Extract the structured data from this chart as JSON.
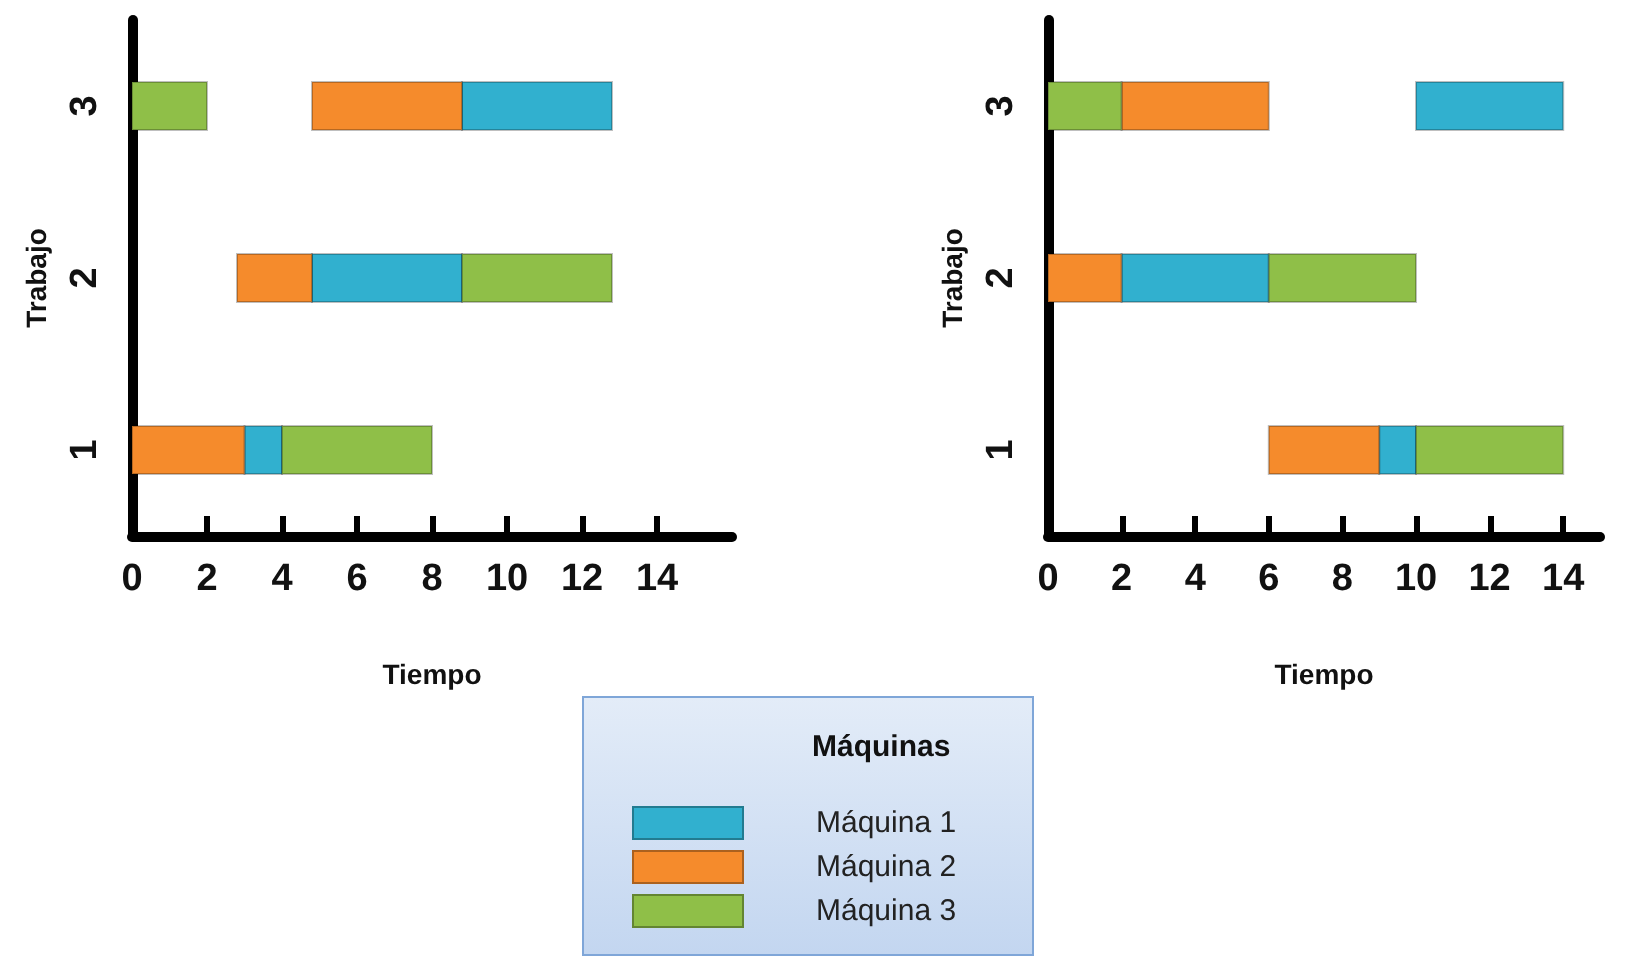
{
  "chart_data": [
    {
      "type": "bar",
      "orientation": "horizontal",
      "xlabel": "Tiempo",
      "ylabel": "Trabajo",
      "categories": [
        "3",
        "2",
        "1"
      ],
      "xlim": [
        0,
        16
      ],
      "xticks": [
        0,
        2,
        4,
        6,
        8,
        10,
        12,
        14
      ],
      "grid": false,
      "legend": "bottom",
      "legend_title": "Máquinas",
      "series": [
        {
          "name": "Máquina 1",
          "color": "#31b0cf",
          "base": [
            8.8,
            4.8,
            3
          ],
          "values": [
            4,
            4,
            1
          ]
        },
        {
          "name": "Máquina 2",
          "color": "#f58b2c",
          "base": [
            4.8,
            2.8,
            0
          ],
          "values": [
            4,
            2,
            3
          ]
        },
        {
          "name": "Máquina 3",
          "color": "#8fbf48",
          "base": [
            0,
            8.8,
            4
          ],
          "values": [
            2,
            4,
            4
          ]
        }
      ]
    },
    {
      "type": "bar",
      "orientation": "horizontal",
      "xlabel": "Tiempo",
      "ylabel": "Trabajo",
      "categories": [
        "3",
        "2",
        "1"
      ],
      "xlim": [
        0,
        15
      ],
      "xticks": [
        0,
        2,
        4,
        6,
        8,
        10,
        12,
        14
      ],
      "grid": false,
      "series": [
        {
          "color": "#31b0cf",
          "base": [
            10,
            2,
            9
          ],
          "values": [
            4,
            4,
            1
          ]
        },
        {
          "color": "#f58b2c",
          "base": [
            2,
            0,
            6
          ],
          "values": [
            4,
            2,
            3
          ]
        },
        {
          "color": "#8fbf48",
          "base": [
            0,
            6,
            10
          ],
          "values": [
            2,
            4,
            4
          ]
        }
      ]
    }
  ]
}
